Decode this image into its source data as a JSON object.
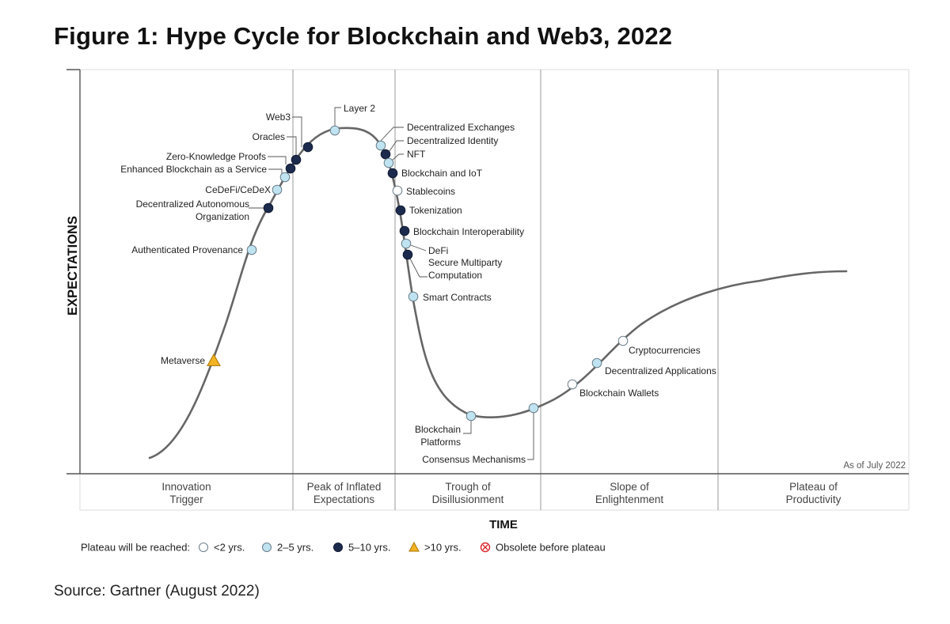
{
  "figure": {
    "title": "Figure 1: Hype Cycle for Blockchain and Web3, 2022",
    "source": "Source: Gartner (August 2022)"
  },
  "colors": {
    "lt2": "#ffffff",
    "y2to5": "#bfe3f0",
    "y5to10": "#1c2b4d",
    "gt10": "#f2b324",
    "obsolete": "#d9262b",
    "curve": "#666666",
    "divider": "#9a9a9a"
  },
  "chart_data": {
    "type": "scatter",
    "title": "Hype Cycle for Blockchain and Web3, 2022",
    "xlabel": "TIME",
    "ylabel": "EXPECTATIONS",
    "as_of": "As of July 2022",
    "phases": [
      "Innovation\nTrigger",
      "Peak of Inflated\nExpectations",
      "Trough of\nDisillusionment",
      "Slope of\nEnlightenment",
      "Plateau of\nProductivity"
    ],
    "legend": {
      "label": "Plateau will be reached:",
      "items": [
        {
          "key": "lt2",
          "label": "<2 yrs."
        },
        {
          "key": "y2to5",
          "label": "2–5 yrs."
        },
        {
          "key": "y5to10",
          "label": "5–10 yrs."
        },
        {
          "key": "gt10",
          "label": ">10 yrs."
        },
        {
          "key": "obsolete",
          "label": "Obsolete before plateau"
        }
      ]
    },
    "technologies": [
      {
        "name": "Metaverse",
        "category": "gt10"
      },
      {
        "name": "Authenticated Provenance",
        "category": "y2to5"
      },
      {
        "name": "Decentralized Autonomous\nOrganization",
        "category": "y5to10"
      },
      {
        "name": "CeDeFi/CeDeX",
        "category": "y2to5"
      },
      {
        "name": "Enhanced Blockchain as a Service",
        "category": "y2to5"
      },
      {
        "name": "Zero-Knowledge Proofs",
        "category": "y5to10"
      },
      {
        "name": "Oracles",
        "category": "y5to10"
      },
      {
        "name": "Web3",
        "category": "y5to10"
      },
      {
        "name": "Layer 2",
        "category": "y2to5"
      },
      {
        "name": "Decentralized Exchanges",
        "category": "y2to5"
      },
      {
        "name": "Decentralized Identity",
        "category": "y5to10"
      },
      {
        "name": "NFT",
        "category": "y2to5"
      },
      {
        "name": "Blockchain and IoT",
        "category": "y5to10"
      },
      {
        "name": "Stablecoins",
        "category": "lt2"
      },
      {
        "name": "Tokenization",
        "category": "y5to10"
      },
      {
        "name": "Blockchain Interoperability",
        "category": "y5to10"
      },
      {
        "name": "DeFi",
        "category": "y2to5"
      },
      {
        "name": "Secure Multiparty\nComputation",
        "category": "y5to10"
      },
      {
        "name": "Smart Contracts",
        "category": "y2to5"
      },
      {
        "name": "Blockchain\nPlatforms",
        "category": "y2to5"
      },
      {
        "name": "Consensus Mechanisms",
        "category": "y2to5"
      },
      {
        "name": "Blockchain Wallets",
        "category": "lt2"
      },
      {
        "name": "Decentralized Applications",
        "category": "y2to5"
      },
      {
        "name": "Cryptocurrencies",
        "category": "lt2"
      }
    ]
  }
}
